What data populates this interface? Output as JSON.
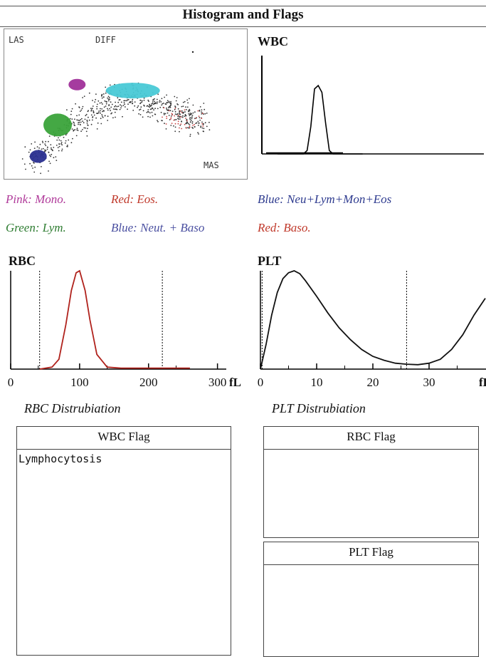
{
  "header": {
    "title": "Histogram and Flags"
  },
  "scatter": {
    "label_las": "LAS",
    "label_diff": "DIFF",
    "label_mas": "MAS"
  },
  "legend": {
    "pink": "Pink: Mono.",
    "red_eos": "Red: Eos.",
    "blue_all": "Blue: Neu+Lym+Mon+Eos",
    "green": "Green: Lym.",
    "blue_neut": "Blue: Neut. + Baso",
    "red_baso": "Red: Baso.",
    "colors": {
      "pink": "#b03a9a",
      "red": "#c0392b",
      "blue": "#2e3b8f",
      "green": "#2f7d32"
    }
  },
  "chart_data": [
    {
      "type": "scatter",
      "name": "DIFF scatter",
      "labels": [
        "LAS",
        "DIFF",
        "MAS"
      ],
      "clusters": [
        {
          "color": "green-cluster",
          "x": 0.22,
          "y": 0.36
        },
        {
          "color": "magenta-cluster",
          "x": 0.3,
          "y": 0.63
        },
        {
          "color": "cyan-cluster",
          "x": 0.53,
          "y": 0.59
        },
        {
          "color": "blue-cluster",
          "x": 0.14,
          "y": 0.15
        }
      ]
    },
    {
      "type": "line",
      "title": "WBC",
      "series": [
        {
          "values": [
            0,
            0,
            0,
            0,
            0,
            0,
            0,
            0,
            0.05,
            0.4,
            0.95,
            1.0,
            0.9,
            0.45,
            0.05,
            0,
            0,
            0,
            0,
            0,
            0,
            0,
            0,
            0,
            0,
            0,
            0,
            0,
            0,
            0,
            0,
            0,
            0,
            0,
            0,
            0,
            0,
            0,
            0,
            0,
            0
          ]
        }
      ]
    },
    {
      "type": "line",
      "title": "RBC",
      "xlabel": "fL",
      "xticks": [
        "0",
        "100",
        "200",
        "300"
      ],
      "xlim": [
        0,
        320
      ],
      "markers": [
        42,
        220
      ],
      "series": [
        {
          "x": [
            42,
            60,
            70,
            80,
            88,
            95,
            100,
            108,
            115,
            125,
            140,
            160,
            200,
            250,
            260
          ],
          "values": [
            0,
            0.02,
            0.1,
            0.45,
            0.8,
            0.98,
            1.0,
            0.8,
            0.5,
            0.15,
            0.02,
            0.01,
            0.01,
            0.01,
            0.01
          ]
        }
      ]
    },
    {
      "type": "line",
      "title": "PLT",
      "xlabel": "fL",
      "xticks": [
        "0",
        "10",
        "20",
        "30"
      ],
      "xlim": [
        0,
        40
      ],
      "markers": [
        0.3,
        26
      ],
      "series": [
        {
          "x": [
            0,
            1,
            2,
            3,
            4,
            5,
            6,
            7,
            8,
            10,
            12,
            14,
            16,
            18,
            20,
            22,
            24,
            26,
            28,
            30,
            32,
            34,
            36,
            38,
            40
          ],
          "values": [
            0,
            0.25,
            0.55,
            0.78,
            0.92,
            0.98,
            1.0,
            0.97,
            0.9,
            0.74,
            0.57,
            0.42,
            0.3,
            0.2,
            0.13,
            0.09,
            0.06,
            0.05,
            0.045,
            0.06,
            0.1,
            0.2,
            0.35,
            0.55,
            0.72
          ]
        }
      ]
    }
  ],
  "captions": {
    "rbc": "RBC Distrubiation",
    "plt": "PLT Distrubiation"
  },
  "flags": {
    "wbc": {
      "title": "WBC Flag",
      "items": [
        "Lymphocytosis"
      ]
    },
    "rbc": {
      "title": "RBC Flag"
    },
    "plt": {
      "title": "PLT Flag"
    }
  }
}
